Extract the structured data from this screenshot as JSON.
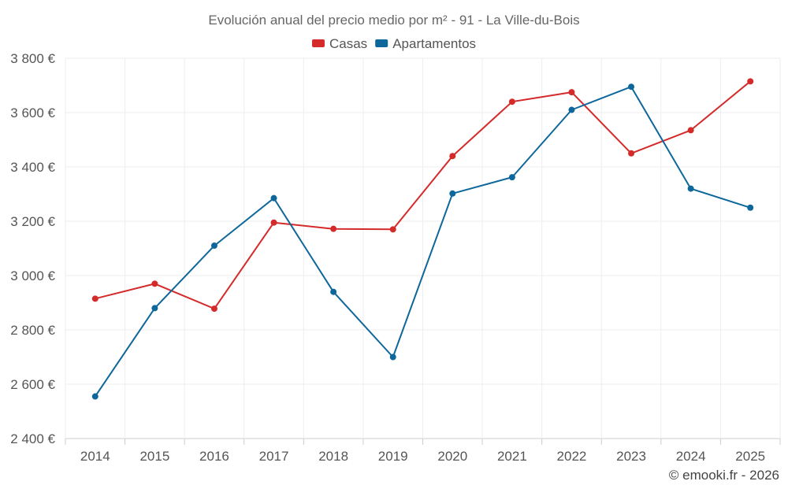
{
  "chart_data": {
    "type": "line",
    "title": "Evolución anual del precio medio por m² - 91 - La Ville-du-Bois",
    "categories": [
      "2014",
      "2015",
      "2016",
      "2017",
      "2018",
      "2019",
      "2020",
      "2021",
      "2022",
      "2023",
      "2024",
      "2025"
    ],
    "series": [
      {
        "name": "Casas",
        "color": "#d42a2a",
        "values": [
          2915,
          2970,
          2878,
          3195,
          3172,
          3170,
          3440,
          3640,
          3675,
          3450,
          3535,
          3715
        ]
      },
      {
        "name": "Apartamentos",
        "color": "#0e679a",
        "values": [
          2555,
          2880,
          3110,
          3285,
          2940,
          2700,
          3302,
          3362,
          3610,
          3695,
          3320,
          3250
        ]
      }
    ],
    "ylim": [
      2400,
      3800
    ],
    "yticks": [
      2400,
      2600,
      2800,
      3000,
      3200,
      3400,
      3600,
      3800
    ],
    "ytick_labels": [
      "2 400 €",
      "2 600 €",
      "2 800 €",
      "3 000 €",
      "3 200 €",
      "3 400 €",
      "3 600 €",
      "3 800 €"
    ],
    "xlabel": "",
    "ylabel": "",
    "grid": true,
    "legend_position": "top-center"
  },
  "credit": "© emooki.fr - 2026"
}
